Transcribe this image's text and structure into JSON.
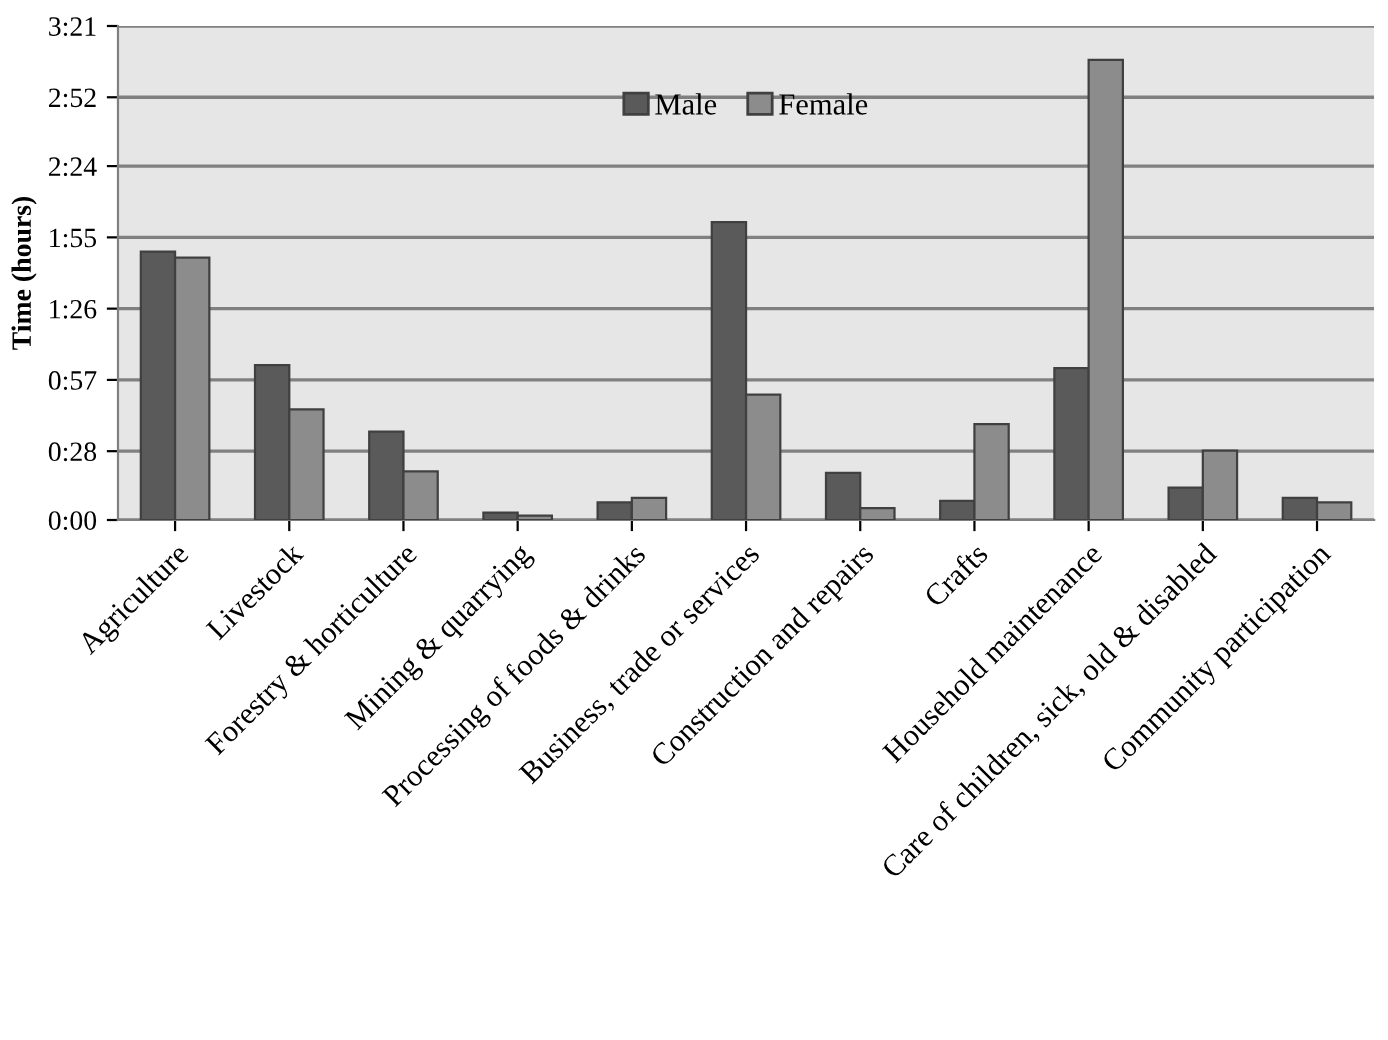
{
  "chart_data": {
    "type": "bar",
    "ylabel": "Time (hours)",
    "categories": [
      "Agriculture",
      "Livestock",
      "Forestry & horticulture",
      "Mining & quarrying",
      "Processing of foods & drinks",
      "Business, trade or services",
      "Construction and repairs",
      "Crafts",
      "Household maintenance",
      "Care of children, sick, old & disabled",
      "Community participation"
    ],
    "series": [
      {
        "name": "Male",
        "color": "#5a5a5a",
        "values": [
          1.82,
          1.05,
          0.6,
          0.05,
          0.12,
          2.02,
          0.32,
          0.13,
          1.03,
          0.22,
          0.15
        ]
      },
      {
        "name": "Female",
        "color": "#8c8c8c",
        "values": [
          1.78,
          0.75,
          0.33,
          0.03,
          0.15,
          0.85,
          0.08,
          0.65,
          3.12,
          0.47,
          0.12
        ]
      }
    ],
    "ylim": [
      0,
      3.35
    ],
    "yticks": [
      {
        "value": 0,
        "label": "0:00"
      },
      {
        "value": 0.4667,
        "label": "0:28"
      },
      {
        "value": 0.95,
        "label": "0:57"
      },
      {
        "value": 1.4333,
        "label": "1:26"
      },
      {
        "value": 1.9167,
        "label": "1:55"
      },
      {
        "value": 2.4,
        "label": "2:24"
      },
      {
        "value": 2.8667,
        "label": "2:52"
      },
      {
        "value": 3.35,
        "label": "3:21"
      }
    ],
    "grid": "y",
    "legend": "top"
  }
}
